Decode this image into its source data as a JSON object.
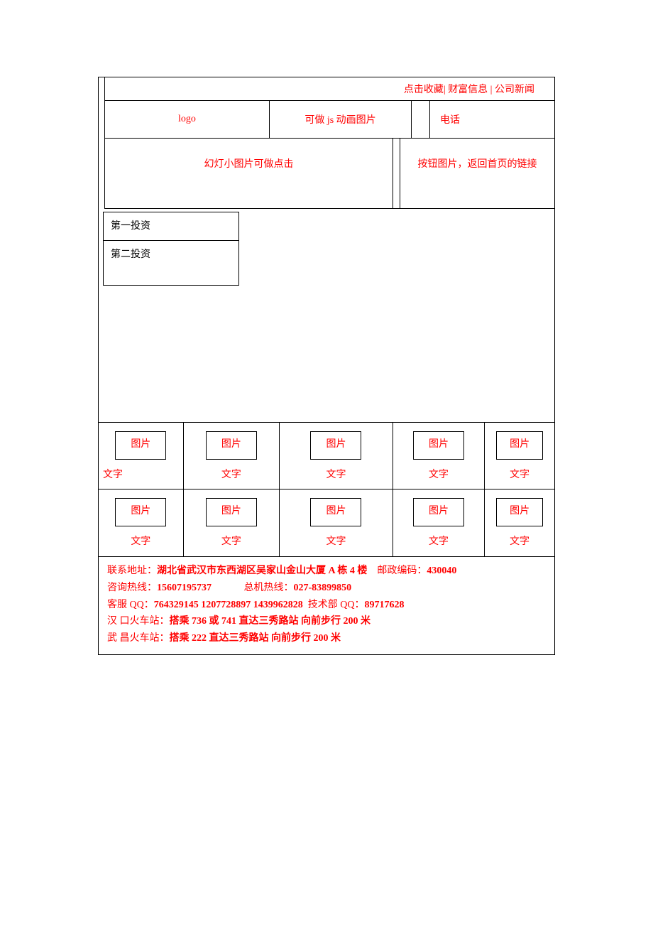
{
  "topnav": {
    "favorite": "点击收藏|",
    "wealth": " 财富信息 |",
    "news": "公司新闻"
  },
  "header": {
    "logo": "logo",
    "js_img": "可做 js 动画图片",
    "phone": "电话"
  },
  "banner": {
    "slide": "幻灯小图片可做点击",
    "button": "按钮图片，返回首页的链接"
  },
  "invest": {
    "item1": "第一投资",
    "item2": "第二投资"
  },
  "gallery": {
    "img_label": "图片",
    "txt_label": "文字"
  },
  "footer": {
    "address_label": "联系地址：",
    "address": "湖北省武汉市东西湖区吴家山金山大厦 A 栋 4 楼",
    "postcode_label": "邮政编码：",
    "postcode": "430040",
    "hotline_label": "咨询热线：",
    "hotline": "15607195737",
    "switchboard_label": "总机热线：",
    "switchboard": "027-83899850",
    "qq_label": "客服 QQ：",
    "qq": "764329145 1207728897 1439962828",
    "tech_qq_label": "技术部 QQ：",
    "tech_qq": "89717628",
    "hankou_label": "汉  口火车站：",
    "hankou": "搭乘 736 或 741 直达三秀路站  向前步行 200 米",
    "wuchang_label": "武  昌火车站：",
    "wuchang": "搭乘 222 直达三秀路站  向前步行 200 米"
  },
  "colors": {
    "text_red": "#ff0000",
    "text_black": "#000000",
    "border": "#000000",
    "background": "#ffffff"
  }
}
